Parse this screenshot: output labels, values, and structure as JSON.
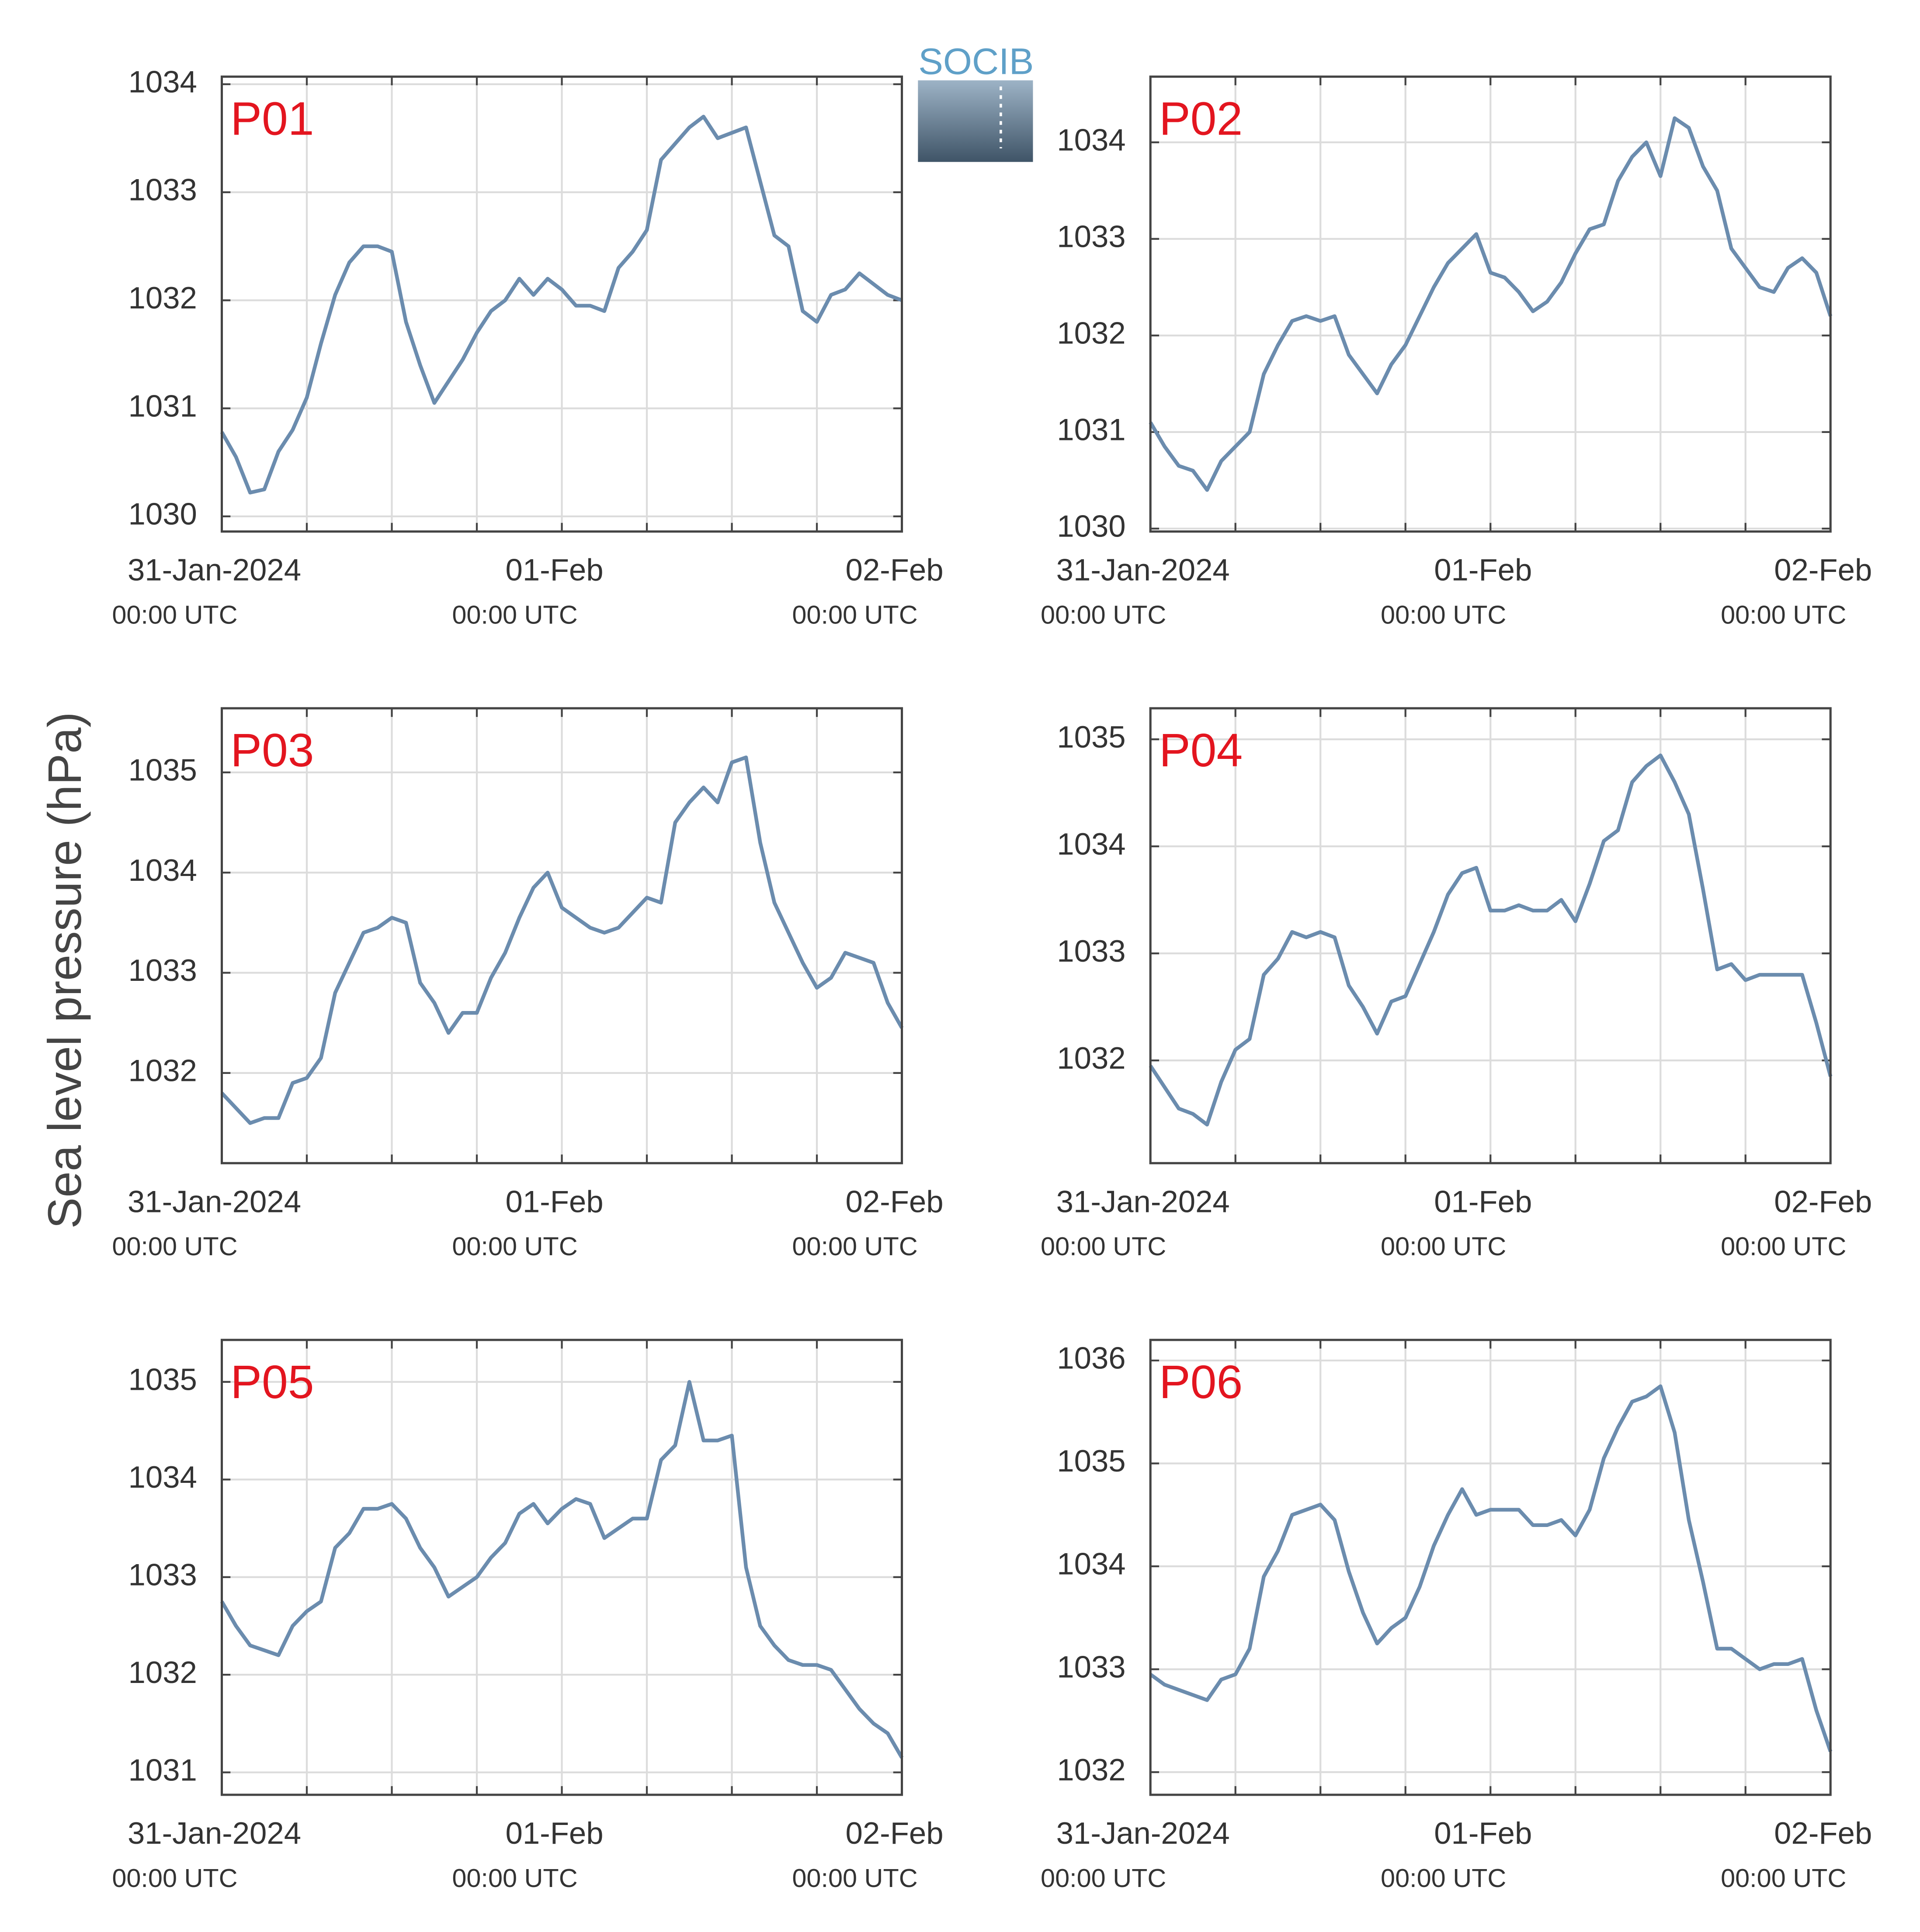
{
  "ylabel": "Sea level pressure (hPa)",
  "logo": "SOCIB",
  "chart_data": [
    {
      "type": "line",
      "title": "P01",
      "color": "#6b8cae",
      "grid": true,
      "x": [
        "2024-01-31T00:00Z",
        "2024-01-31T01:00Z",
        "2024-01-31T02:00Z",
        "2024-01-31T03:00Z",
        "2024-01-31T04:00Z",
        "2024-01-31T05:00Z",
        "2024-01-31T06:00Z",
        "2024-01-31T07:00Z",
        "2024-01-31T08:00Z",
        "2024-01-31T09:00Z",
        "2024-01-31T10:00Z",
        "2024-01-31T11:00Z",
        "2024-01-31T12:00Z",
        "2024-01-31T13:00Z",
        "2024-01-31T14:00Z",
        "2024-01-31T15:00Z",
        "2024-01-31T16:00Z",
        "2024-01-31T17:00Z",
        "2024-01-31T18:00Z",
        "2024-01-31T19:00Z",
        "2024-01-31T20:00Z",
        "2024-01-31T21:00Z",
        "2024-01-31T22:00Z",
        "2024-01-31T23:00Z",
        "2024-02-01T00:00Z",
        "2024-02-01T01:00Z",
        "2024-02-01T02:00Z",
        "2024-02-01T03:00Z",
        "2024-02-01T04:00Z",
        "2024-02-01T05:00Z",
        "2024-02-01T06:00Z",
        "2024-02-01T07:00Z",
        "2024-02-01T08:00Z",
        "2024-02-01T09:00Z",
        "2024-02-01T10:00Z",
        "2024-02-01T11:00Z",
        "2024-02-01T12:00Z",
        "2024-02-01T13:00Z",
        "2024-02-01T14:00Z",
        "2024-02-01T15:00Z",
        "2024-02-01T16:00Z",
        "2024-02-01T17:00Z",
        "2024-02-01T18:00Z",
        "2024-02-01T19:00Z",
        "2024-02-01T20:00Z",
        "2024-02-01T21:00Z",
        "2024-02-01T22:00Z",
        "2024-02-01T23:00Z",
        "2024-02-02T00:00Z"
      ],
      "values": [
        1030.78,
        1030.55,
        1030.22,
        1030.25,
        1030.6,
        1030.8,
        1031.1,
        1031.6,
        1032.05,
        1032.35,
        1032.5,
        1032.5,
        1032.45,
        1031.8,
        1031.4,
        1031.05,
        1031.25,
        1031.45,
        1031.7,
        1031.9,
        1032.0,
        1032.2,
        1032.05,
        1032.2,
        1032.1,
        1031.95,
        1031.95,
        1031.9,
        1032.3,
        1032.45,
        1032.65,
        1033.3,
        1033.45,
        1033.6,
        1033.7,
        1033.5,
        1033.55,
        1033.6,
        1033.1,
        1032.6,
        1032.5,
        1031.9,
        1031.8,
        1032.05,
        1032.1,
        1032.25,
        1032.15,
        1032.05,
        1032.0
      ],
      "xlim": [
        "2024-01-31T00:00Z",
        "2024-02-02T00:00Z"
      ],
      "xticks": [
        {
          "value": "2024-01-31T00:00Z",
          "label": "31-Jan-2024",
          "sublabel": "00:00 UTC"
        },
        {
          "value": "2024-02-01T00:00Z",
          "label": "01-Feb",
          "sublabel": "00:00 UTC"
        },
        {
          "value": "2024-02-02T00:00Z",
          "label": "02-Feb",
          "sublabel": "00:00 UTC"
        }
      ],
      "xminor": [
        "2024-01-31T06:00Z",
        "2024-01-31T12:00Z",
        "2024-01-31T18:00Z",
        "2024-02-01T06:00Z",
        "2024-02-01T12:00Z",
        "2024-02-01T18:00Z"
      ],
      "ylim": [
        1029.86,
        1034.07
      ],
      "yticks": [
        1030,
        1031,
        1032,
        1033,
        1034
      ]
    },
    {
      "type": "line",
      "title": "P02",
      "color": "#6b8cae",
      "grid": true,
      "x": [
        "2024-01-31T00:00Z",
        "2024-01-31T01:00Z",
        "2024-01-31T02:00Z",
        "2024-01-31T03:00Z",
        "2024-01-31T04:00Z",
        "2024-01-31T05:00Z",
        "2024-01-31T06:00Z",
        "2024-01-31T07:00Z",
        "2024-01-31T08:00Z",
        "2024-01-31T09:00Z",
        "2024-01-31T10:00Z",
        "2024-01-31T11:00Z",
        "2024-01-31T12:00Z",
        "2024-01-31T13:00Z",
        "2024-01-31T14:00Z",
        "2024-01-31T15:00Z",
        "2024-01-31T16:00Z",
        "2024-01-31T17:00Z",
        "2024-01-31T18:00Z",
        "2024-01-31T19:00Z",
        "2024-01-31T20:00Z",
        "2024-01-31T21:00Z",
        "2024-01-31T22:00Z",
        "2024-01-31T23:00Z",
        "2024-02-01T00:00Z",
        "2024-02-01T01:00Z",
        "2024-02-01T02:00Z",
        "2024-02-01T03:00Z",
        "2024-02-01T04:00Z",
        "2024-02-01T05:00Z",
        "2024-02-01T06:00Z",
        "2024-02-01T07:00Z",
        "2024-02-01T08:00Z",
        "2024-02-01T09:00Z",
        "2024-02-01T10:00Z",
        "2024-02-01T11:00Z",
        "2024-02-01T12:00Z",
        "2024-02-01T13:00Z",
        "2024-02-01T14:00Z",
        "2024-02-01T15:00Z",
        "2024-02-01T16:00Z",
        "2024-02-01T17:00Z",
        "2024-02-01T18:00Z",
        "2024-02-01T19:00Z",
        "2024-02-01T20:00Z",
        "2024-02-01T21:00Z",
        "2024-02-01T22:00Z",
        "2024-02-01T23:00Z",
        "2024-02-02T00:00Z"
      ],
      "values": [
        1031.1,
        1030.85,
        1030.65,
        1030.6,
        1030.4,
        1030.7,
        1030.85,
        1031.0,
        1031.6,
        1031.9,
        1032.15,
        1032.2,
        1032.15,
        1032.2,
        1031.8,
        1031.6,
        1031.4,
        1031.7,
        1031.9,
        1032.2,
        1032.5,
        1032.75,
        1032.9,
        1033.05,
        1032.65,
        1032.6,
        1032.45,
        1032.25,
        1032.35,
        1032.55,
        1032.85,
        1033.1,
        1033.15,
        1033.6,
        1033.85,
        1034.0,
        1033.65,
        1034.25,
        1034.15,
        1033.75,
        1033.5,
        1032.9,
        1032.7,
        1032.5,
        1032.45,
        1032.7,
        1032.8,
        1032.65,
        1032.2
      ],
      "xlim": [
        "2024-01-31T00:00Z",
        "2024-02-02T00:00Z"
      ],
      "xticks": [
        {
          "value": "2024-01-31T00:00Z",
          "label": "31-Jan-2024",
          "sublabel": "00:00 UTC"
        },
        {
          "value": "2024-02-01T00:00Z",
          "label": "01-Feb",
          "sublabel": "00:00 UTC"
        },
        {
          "value": "2024-02-02T00:00Z",
          "label": "02-Feb",
          "sublabel": "00:00 UTC"
        }
      ],
      "xminor": [
        "2024-01-31T06:00Z",
        "2024-01-31T12:00Z",
        "2024-01-31T18:00Z",
        "2024-02-01T06:00Z",
        "2024-02-01T12:00Z",
        "2024-02-01T18:00Z"
      ],
      "ylim": [
        1029.97,
        1034.68
      ],
      "yticks": [
        1030,
        1031,
        1032,
        1033,
        1034
      ]
    },
    {
      "type": "line",
      "title": "P03",
      "color": "#6b8cae",
      "grid": true,
      "x": [
        "2024-01-31T00:00Z",
        "2024-01-31T01:00Z",
        "2024-01-31T02:00Z",
        "2024-01-31T03:00Z",
        "2024-01-31T04:00Z",
        "2024-01-31T05:00Z",
        "2024-01-31T06:00Z",
        "2024-01-31T07:00Z",
        "2024-01-31T08:00Z",
        "2024-01-31T09:00Z",
        "2024-01-31T10:00Z",
        "2024-01-31T11:00Z",
        "2024-01-31T12:00Z",
        "2024-01-31T13:00Z",
        "2024-01-31T14:00Z",
        "2024-01-31T15:00Z",
        "2024-01-31T16:00Z",
        "2024-01-31T17:00Z",
        "2024-01-31T18:00Z",
        "2024-01-31T19:00Z",
        "2024-01-31T20:00Z",
        "2024-01-31T21:00Z",
        "2024-01-31T22:00Z",
        "2024-01-31T23:00Z",
        "2024-02-01T00:00Z",
        "2024-02-01T01:00Z",
        "2024-02-01T02:00Z",
        "2024-02-01T03:00Z",
        "2024-02-01T04:00Z",
        "2024-02-01T05:00Z",
        "2024-02-01T06:00Z",
        "2024-02-01T07:00Z",
        "2024-02-01T08:00Z",
        "2024-02-01T09:00Z",
        "2024-02-01T10:00Z",
        "2024-02-01T11:00Z",
        "2024-02-01T12:00Z",
        "2024-02-01T13:00Z",
        "2024-02-01T14:00Z",
        "2024-02-01T15:00Z",
        "2024-02-01T16:00Z",
        "2024-02-01T17:00Z",
        "2024-02-01T18:00Z",
        "2024-02-01T19:00Z",
        "2024-02-01T20:00Z",
        "2024-02-01T21:00Z",
        "2024-02-01T22:00Z",
        "2024-02-01T23:00Z",
        "2024-02-02T00:00Z"
      ],
      "values": [
        1031.8,
        1031.65,
        1031.5,
        1031.55,
        1031.55,
        1031.9,
        1031.95,
        1032.15,
        1032.8,
        1033.1,
        1033.4,
        1033.45,
        1033.55,
        1033.5,
        1032.9,
        1032.7,
        1032.4,
        1032.6,
        1032.6,
        1032.95,
        1033.2,
        1033.55,
        1033.85,
        1034.0,
        1033.65,
        1033.55,
        1033.45,
        1033.4,
        1033.45,
        1033.6,
        1033.75,
        1033.7,
        1034.5,
        1034.7,
        1034.85,
        1034.7,
        1035.1,
        1035.15,
        1034.3,
        1033.7,
        1033.4,
        1033.1,
        1032.85,
        1032.95,
        1033.2,
        1033.15,
        1033.1,
        1032.7,
        1032.45
      ],
      "xlim": [
        "2024-01-31T00:00Z",
        "2024-02-02T00:00Z"
      ],
      "xticks": [
        {
          "value": "2024-01-31T00:00Z",
          "label": "31-Jan-2024",
          "sublabel": "00:00 UTC"
        },
        {
          "value": "2024-02-01T00:00Z",
          "label": "01-Feb",
          "sublabel": "00:00 UTC"
        },
        {
          "value": "2024-02-02T00:00Z",
          "label": "02-Feb",
          "sublabel": "00:00 UTC"
        }
      ],
      "xminor": [
        "2024-01-31T06:00Z",
        "2024-01-31T12:00Z",
        "2024-01-31T18:00Z",
        "2024-02-01T06:00Z",
        "2024-02-01T12:00Z",
        "2024-02-01T18:00Z"
      ],
      "ylim": [
        1031.1,
        1035.64
      ],
      "yticks": [
        1032,
        1033,
        1034,
        1035
      ]
    },
    {
      "type": "line",
      "title": "P04",
      "color": "#6b8cae",
      "grid": true,
      "x": [
        "2024-01-31T00:00Z",
        "2024-01-31T01:00Z",
        "2024-01-31T02:00Z",
        "2024-01-31T03:00Z",
        "2024-01-31T04:00Z",
        "2024-01-31T05:00Z",
        "2024-01-31T06:00Z",
        "2024-01-31T07:00Z",
        "2024-01-31T08:00Z",
        "2024-01-31T09:00Z",
        "2024-01-31T10:00Z",
        "2024-01-31T11:00Z",
        "2024-01-31T12:00Z",
        "2024-01-31T13:00Z",
        "2024-01-31T14:00Z",
        "2024-01-31T15:00Z",
        "2024-01-31T16:00Z",
        "2024-01-31T17:00Z",
        "2024-01-31T18:00Z",
        "2024-01-31T19:00Z",
        "2024-01-31T20:00Z",
        "2024-01-31T21:00Z",
        "2024-01-31T22:00Z",
        "2024-01-31T23:00Z",
        "2024-02-01T00:00Z",
        "2024-02-01T01:00Z",
        "2024-02-01T02:00Z",
        "2024-02-01T03:00Z",
        "2024-02-01T04:00Z",
        "2024-02-01T05:00Z",
        "2024-02-01T06:00Z",
        "2024-02-01T07:00Z",
        "2024-02-01T08:00Z",
        "2024-02-01T09:00Z",
        "2024-02-01T10:00Z",
        "2024-02-01T11:00Z",
        "2024-02-01T12:00Z",
        "2024-02-01T13:00Z",
        "2024-02-01T14:00Z",
        "2024-02-01T15:00Z",
        "2024-02-01T16:00Z",
        "2024-02-01T17:00Z",
        "2024-02-01T18:00Z",
        "2024-02-01T19:00Z",
        "2024-02-01T20:00Z",
        "2024-02-01T21:00Z",
        "2024-02-01T22:00Z",
        "2024-02-01T23:00Z",
        "2024-02-02T00:00Z"
      ],
      "values": [
        1031.95,
        1031.75,
        1031.55,
        1031.5,
        1031.4,
        1031.8,
        1032.1,
        1032.2,
        1032.8,
        1032.95,
        1033.2,
        1033.15,
        1033.2,
        1033.15,
        1032.7,
        1032.5,
        1032.25,
        1032.55,
        1032.6,
        1032.9,
        1033.2,
        1033.55,
        1033.75,
        1033.8,
        1033.4,
        1033.4,
        1033.45,
        1033.4,
        1033.4,
        1033.5,
        1033.3,
        1033.65,
        1034.05,
        1034.15,
        1034.6,
        1034.75,
        1034.85,
        1034.6,
        1034.3,
        1033.6,
        1032.85,
        1032.9,
        1032.75,
        1032.8,
        1032.8,
        1032.8,
        1032.8,
        1032.35,
        1031.85
      ],
      "xlim": [
        "2024-01-31T00:00Z",
        "2024-02-02T00:00Z"
      ],
      "xticks": [
        {
          "value": "2024-01-31T00:00Z",
          "label": "31-Jan-2024",
          "sublabel": "00:00 UTC"
        },
        {
          "value": "2024-02-01T00:00Z",
          "label": "01-Feb",
          "sublabel": "00:00 UTC"
        },
        {
          "value": "2024-02-02T00:00Z",
          "label": "02-Feb",
          "sublabel": "00:00 UTC"
        }
      ],
      "xminor": [
        "2024-01-31T06:00Z",
        "2024-01-31T12:00Z",
        "2024-01-31T18:00Z",
        "2024-02-01T06:00Z",
        "2024-02-01T12:00Z",
        "2024-02-01T18:00Z"
      ],
      "ylim": [
        1031.04,
        1035.29
      ],
      "yticks": [
        1032,
        1033,
        1034,
        1035
      ]
    },
    {
      "type": "line",
      "title": "P05",
      "color": "#6b8cae",
      "grid": true,
      "x": [
        "2024-01-31T00:00Z",
        "2024-01-31T01:00Z",
        "2024-01-31T02:00Z",
        "2024-01-31T03:00Z",
        "2024-01-31T04:00Z",
        "2024-01-31T05:00Z",
        "2024-01-31T06:00Z",
        "2024-01-31T07:00Z",
        "2024-01-31T08:00Z",
        "2024-01-31T09:00Z",
        "2024-01-31T10:00Z",
        "2024-01-31T11:00Z",
        "2024-01-31T12:00Z",
        "2024-01-31T13:00Z",
        "2024-01-31T14:00Z",
        "2024-01-31T15:00Z",
        "2024-01-31T16:00Z",
        "2024-01-31T17:00Z",
        "2024-01-31T18:00Z",
        "2024-01-31T19:00Z",
        "2024-01-31T20:00Z",
        "2024-01-31T21:00Z",
        "2024-01-31T22:00Z",
        "2024-01-31T23:00Z",
        "2024-02-01T00:00Z",
        "2024-02-01T01:00Z",
        "2024-02-01T02:00Z",
        "2024-02-01T03:00Z",
        "2024-02-01T04:00Z",
        "2024-02-01T05:00Z",
        "2024-02-01T06:00Z",
        "2024-02-01T07:00Z",
        "2024-02-01T08:00Z",
        "2024-02-01T09:00Z",
        "2024-02-01T10:00Z",
        "2024-02-01T11:00Z",
        "2024-02-01T12:00Z",
        "2024-02-01T13:00Z",
        "2024-02-01T14:00Z",
        "2024-02-01T15:00Z",
        "2024-02-01T16:00Z",
        "2024-02-01T17:00Z",
        "2024-02-01T18:00Z",
        "2024-02-01T19:00Z",
        "2024-02-01T20:00Z",
        "2024-02-01T21:00Z",
        "2024-02-01T22:00Z",
        "2024-02-01T23:00Z",
        "2024-02-02T00:00Z"
      ],
      "values": [
        1032.75,
        1032.5,
        1032.3,
        1032.25,
        1032.2,
        1032.5,
        1032.65,
        1032.75,
        1033.3,
        1033.45,
        1033.7,
        1033.7,
        1033.75,
        1033.6,
        1033.3,
        1033.1,
        1032.8,
        1032.9,
        1033.0,
        1033.2,
        1033.35,
        1033.65,
        1033.75,
        1033.55,
        1033.7,
        1033.8,
        1033.75,
        1033.4,
        1033.5,
        1033.6,
        1033.6,
        1034.2,
        1034.35,
        1035.0,
        1034.4,
        1034.4,
        1034.45,
        1033.1,
        1032.5,
        1032.3,
        1032.15,
        1032.1,
        1032.1,
        1032.05,
        1031.85,
        1031.65,
        1031.5,
        1031.4,
        1031.15
      ],
      "xlim": [
        "2024-01-31T00:00Z",
        "2024-02-02T00:00Z"
      ],
      "xticks": [
        {
          "value": "2024-01-31T00:00Z",
          "label": "31-Jan-2024",
          "sublabel": "00:00 UTC"
        },
        {
          "value": "2024-02-01T00:00Z",
          "label": "01-Feb",
          "sublabel": "00:00 UTC"
        },
        {
          "value": "2024-02-02T00:00Z",
          "label": "02-Feb",
          "sublabel": "00:00 UTC"
        }
      ],
      "xminor": [
        "2024-01-31T06:00Z",
        "2024-01-31T12:00Z",
        "2024-01-31T18:00Z",
        "2024-02-01T06:00Z",
        "2024-02-01T12:00Z",
        "2024-02-01T18:00Z"
      ],
      "ylim": [
        1030.77,
        1035.43
      ],
      "yticks": [
        1031,
        1032,
        1033,
        1034,
        1035
      ]
    },
    {
      "type": "line",
      "title": "P06",
      "color": "#6b8cae",
      "grid": true,
      "x": [
        "2024-01-31T00:00Z",
        "2024-01-31T01:00Z",
        "2024-01-31T02:00Z",
        "2024-01-31T03:00Z",
        "2024-01-31T04:00Z",
        "2024-01-31T05:00Z",
        "2024-01-31T06:00Z",
        "2024-01-31T07:00Z",
        "2024-01-31T08:00Z",
        "2024-01-31T09:00Z",
        "2024-01-31T10:00Z",
        "2024-01-31T11:00Z",
        "2024-01-31T12:00Z",
        "2024-01-31T13:00Z",
        "2024-01-31T14:00Z",
        "2024-01-31T15:00Z",
        "2024-01-31T16:00Z",
        "2024-01-31T17:00Z",
        "2024-01-31T18:00Z",
        "2024-01-31T19:00Z",
        "2024-01-31T20:00Z",
        "2024-01-31T21:00Z",
        "2024-01-31T22:00Z",
        "2024-01-31T23:00Z",
        "2024-02-01T00:00Z",
        "2024-02-01T01:00Z",
        "2024-02-01T02:00Z",
        "2024-02-01T03:00Z",
        "2024-02-01T04:00Z",
        "2024-02-01T05:00Z",
        "2024-02-01T06:00Z",
        "2024-02-01T07:00Z",
        "2024-02-01T08:00Z",
        "2024-02-01T09:00Z",
        "2024-02-01T10:00Z",
        "2024-02-01T11:00Z",
        "2024-02-01T12:00Z",
        "2024-02-01T13:00Z",
        "2024-02-01T14:00Z",
        "2024-02-01T15:00Z",
        "2024-02-01T16:00Z",
        "2024-02-01T17:00Z",
        "2024-02-01T18:00Z",
        "2024-02-01T19:00Z",
        "2024-02-01T20:00Z",
        "2024-02-01T21:00Z",
        "2024-02-01T22:00Z",
        "2024-02-01T23:00Z",
        "2024-02-02T00:00Z"
      ],
      "values": [
        1032.95,
        1032.85,
        1032.8,
        1032.75,
        1032.7,
        1032.9,
        1032.95,
        1033.2,
        1033.9,
        1034.15,
        1034.5,
        1034.55,
        1034.6,
        1034.45,
        1033.95,
        1033.55,
        1033.25,
        1033.4,
        1033.5,
        1033.8,
        1034.2,
        1034.5,
        1034.75,
        1034.5,
        1034.55,
        1034.55,
        1034.55,
        1034.4,
        1034.4,
        1034.45,
        1034.3,
        1034.55,
        1035.05,
        1035.35,
        1035.6,
        1035.65,
        1035.75,
        1035.3,
        1034.45,
        1033.85,
        1033.2,
        1033.2,
        1033.1,
        1033.0,
        1033.05,
        1033.05,
        1033.1,
        1032.6,
        1032.2
      ],
      "xlim": [
        "2024-01-31T00:00Z",
        "2024-02-02T00:00Z"
      ],
      "xticks": [
        {
          "value": "2024-01-31T00:00Z",
          "label": "31-Jan-2024",
          "sublabel": "00:00 UTC"
        },
        {
          "value": "2024-02-01T00:00Z",
          "label": "01-Feb",
          "sublabel": "00:00 UTC"
        },
        {
          "value": "2024-02-02T00:00Z",
          "label": "02-Feb",
          "sublabel": "00:00 UTC"
        }
      ],
      "xminor": [
        "2024-01-31T06:00Z",
        "2024-01-31T12:00Z",
        "2024-01-31T18:00Z",
        "2024-02-01T06:00Z",
        "2024-02-01T12:00Z",
        "2024-02-01T18:00Z"
      ],
      "ylim": [
        1031.78,
        1036.2
      ],
      "yticks": [
        1032,
        1033,
        1034,
        1035,
        1036
      ]
    }
  ]
}
